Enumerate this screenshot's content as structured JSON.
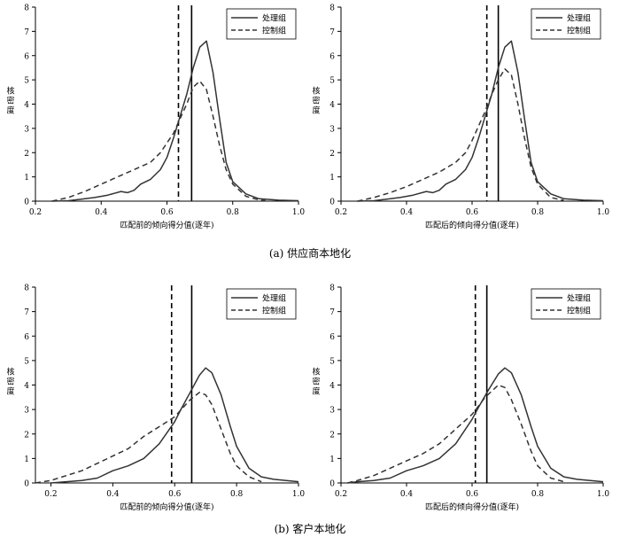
{
  "captions": {
    "a": "(a) 供应商本地化",
    "b": "(b) 客户本地化"
  },
  "style": {
    "line_color": "#333333",
    "axis_color": "#000000"
  },
  "chart_data": [
    {
      "type": "line",
      "panel": "a-left",
      "xlabel": "匹配前的倾向得分值(逐年)",
      "ylabel": "核密度",
      "xlim": [
        0.2,
        1.0
      ],
      "ylim": [
        0,
        8
      ],
      "xticks": [
        "0.2",
        "0.4",
        "0.6",
        "0.8",
        "1.0"
      ],
      "yticks": [
        "0",
        "1",
        "2",
        "3",
        "4",
        "5",
        "6",
        "7",
        "8"
      ],
      "legend_position": "top-right",
      "vlines": [
        {
          "x": 0.635,
          "style": "dashed"
        },
        {
          "x": 0.675,
          "style": "solid"
        }
      ],
      "series": [
        {
          "name": "处理组",
          "style": "solid",
          "x": [
            0.25,
            0.3,
            0.34,
            0.38,
            0.42,
            0.46,
            0.48,
            0.5,
            0.52,
            0.55,
            0.58,
            0.6,
            0.62,
            0.64,
            0.66,
            0.68,
            0.7,
            0.72,
            0.74,
            0.76,
            0.78,
            0.8,
            0.84,
            0.88,
            0.94,
            1.0
          ],
          "y": [
            0.0,
            0.02,
            0.08,
            0.15,
            0.25,
            0.4,
            0.35,
            0.45,
            0.7,
            0.9,
            1.3,
            1.8,
            2.6,
            3.5,
            4.4,
            5.5,
            6.35,
            6.6,
            5.3,
            3.4,
            1.6,
            0.8,
            0.3,
            0.1,
            0.04,
            0.02
          ]
        },
        {
          "name": "控制组",
          "style": "dashed",
          "x": [
            0.25,
            0.3,
            0.35,
            0.4,
            0.45,
            0.5,
            0.55,
            0.58,
            0.6,
            0.62,
            0.64,
            0.66,
            0.68,
            0.7,
            0.72,
            0.74,
            0.76,
            0.78,
            0.8,
            0.84,
            0.88,
            0.9
          ],
          "y": [
            0.0,
            0.15,
            0.4,
            0.7,
            1.0,
            1.3,
            1.6,
            2.0,
            2.4,
            2.8,
            3.4,
            4.0,
            4.7,
            4.95,
            4.6,
            3.5,
            2.3,
            1.3,
            0.7,
            0.2,
            0.05,
            0.02
          ]
        }
      ]
    },
    {
      "type": "line",
      "panel": "a-right",
      "xlabel": "匹配后的倾向得分值(逐年)",
      "ylabel": "核密度",
      "xlim": [
        0.2,
        1.0
      ],
      "ylim": [
        0,
        8
      ],
      "xticks": [
        "0.2",
        "0.4",
        "0.6",
        "0.8",
        "1.0"
      ],
      "yticks": [
        "0",
        "1",
        "2",
        "3",
        "4",
        "5",
        "6",
        "7",
        "8"
      ],
      "legend_position": "top-right",
      "vlines": [
        {
          "x": 0.645,
          "style": "dashed"
        },
        {
          "x": 0.68,
          "style": "solid"
        }
      ],
      "series": [
        {
          "name": "处理组",
          "style": "solid",
          "x": [
            0.25,
            0.3,
            0.34,
            0.38,
            0.42,
            0.46,
            0.48,
            0.5,
            0.52,
            0.55,
            0.58,
            0.6,
            0.62,
            0.64,
            0.66,
            0.68,
            0.7,
            0.72,
            0.74,
            0.76,
            0.78,
            0.8,
            0.84,
            0.88,
            0.94,
            1.0
          ],
          "y": [
            0.0,
            0.02,
            0.08,
            0.15,
            0.25,
            0.4,
            0.35,
            0.45,
            0.7,
            0.9,
            1.3,
            1.8,
            2.6,
            3.5,
            4.4,
            5.5,
            6.35,
            6.6,
            5.3,
            3.4,
            1.6,
            0.8,
            0.3,
            0.1,
            0.04,
            0.02
          ]
        },
        {
          "name": "控制组",
          "style": "dashed",
          "x": [
            0.25,
            0.3,
            0.35,
            0.4,
            0.45,
            0.5,
            0.55,
            0.58,
            0.6,
            0.62,
            0.64,
            0.66,
            0.68,
            0.7,
            0.72,
            0.74,
            0.76,
            0.78,
            0.8,
            0.84,
            0.88
          ],
          "y": [
            0.0,
            0.15,
            0.35,
            0.6,
            0.9,
            1.2,
            1.6,
            2.0,
            2.5,
            3.1,
            3.7,
            4.4,
            5.0,
            5.45,
            5.2,
            4.0,
            2.6,
            1.4,
            0.7,
            0.15,
            0.03
          ]
        }
      ]
    },
    {
      "type": "line",
      "panel": "b-left",
      "xlabel": "匹配前的倾向得分值(逐年)",
      "ylabel": "核密度",
      "xlim": [
        0.15,
        1.0
      ],
      "ylim": [
        0,
        8
      ],
      "xticks": [
        "0.2",
        "0.4",
        "0.6",
        "0.8",
        "1.0"
      ],
      "yticks": [
        "0",
        "1",
        "2",
        "3",
        "4",
        "5",
        "6",
        "7",
        "8"
      ],
      "legend_position": "top-right",
      "vlines": [
        {
          "x": 0.59,
          "style": "dashed"
        },
        {
          "x": 0.655,
          "style": "solid"
        }
      ],
      "series": [
        {
          "name": "处理组",
          "style": "solid",
          "x": [
            0.2,
            0.25,
            0.3,
            0.35,
            0.4,
            0.45,
            0.5,
            0.55,
            0.6,
            0.62,
            0.65,
            0.68,
            0.7,
            0.72,
            0.75,
            0.78,
            0.8,
            0.84,
            0.88,
            0.92,
            0.96,
            1.0
          ],
          "y": [
            0.0,
            0.05,
            0.1,
            0.2,
            0.5,
            0.7,
            1.0,
            1.6,
            2.5,
            3.0,
            3.7,
            4.4,
            4.7,
            4.5,
            3.6,
            2.3,
            1.5,
            0.6,
            0.25,
            0.15,
            0.1,
            0.05
          ]
        },
        {
          "name": "控制组",
          "style": "dashed",
          "x": [
            0.15,
            0.2,
            0.25,
            0.3,
            0.35,
            0.4,
            0.45,
            0.5,
            0.55,
            0.6,
            0.65,
            0.68,
            0.7,
            0.72,
            0.75,
            0.78,
            0.8,
            0.84,
            0.88
          ],
          "y": [
            0.0,
            0.1,
            0.3,
            0.5,
            0.8,
            1.1,
            1.4,
            1.9,
            2.3,
            2.7,
            3.4,
            3.7,
            3.6,
            3.2,
            2.2,
            1.2,
            0.7,
            0.25,
            0.05
          ]
        }
      ]
    },
    {
      "type": "line",
      "panel": "b-right",
      "xlabel": "匹配后的倾向得分值(逐年)",
      "ylabel": "核密度",
      "xlim": [
        0.2,
        1.0
      ],
      "ylim": [
        0,
        8
      ],
      "xticks": [
        "0.2",
        "0.4",
        "0.6",
        "0.8",
        "1.0"
      ],
      "yticks": [
        "0",
        "1",
        "2",
        "3",
        "4",
        "5",
        "6",
        "7",
        "8"
      ],
      "legend_position": "top-right",
      "vlines": [
        {
          "x": 0.61,
          "style": "dashed"
        },
        {
          "x": 0.645,
          "style": "solid"
        }
      ],
      "series": [
        {
          "name": "处理组",
          "style": "solid",
          "x": [
            0.22,
            0.25,
            0.3,
            0.35,
            0.4,
            0.45,
            0.5,
            0.55,
            0.6,
            0.62,
            0.65,
            0.68,
            0.7,
            0.72,
            0.75,
            0.78,
            0.8,
            0.84,
            0.88,
            0.92,
            0.96,
            1.0
          ],
          "y": [
            0.0,
            0.05,
            0.1,
            0.2,
            0.5,
            0.7,
            1.0,
            1.6,
            2.6,
            3.1,
            3.8,
            4.45,
            4.7,
            4.5,
            3.6,
            2.3,
            1.5,
            0.6,
            0.25,
            0.15,
            0.1,
            0.05
          ]
        },
        {
          "name": "控制组",
          "style": "dashed",
          "x": [
            0.22,
            0.25,
            0.3,
            0.35,
            0.4,
            0.45,
            0.5,
            0.55,
            0.6,
            0.64,
            0.68,
            0.7,
            0.72,
            0.75,
            0.78,
            0.8,
            0.84,
            0.88
          ],
          "y": [
            0.0,
            0.1,
            0.3,
            0.6,
            0.9,
            1.2,
            1.6,
            2.2,
            2.8,
            3.5,
            4.0,
            3.9,
            3.4,
            2.4,
            1.3,
            0.7,
            0.2,
            0.05
          ]
        }
      ]
    }
  ]
}
